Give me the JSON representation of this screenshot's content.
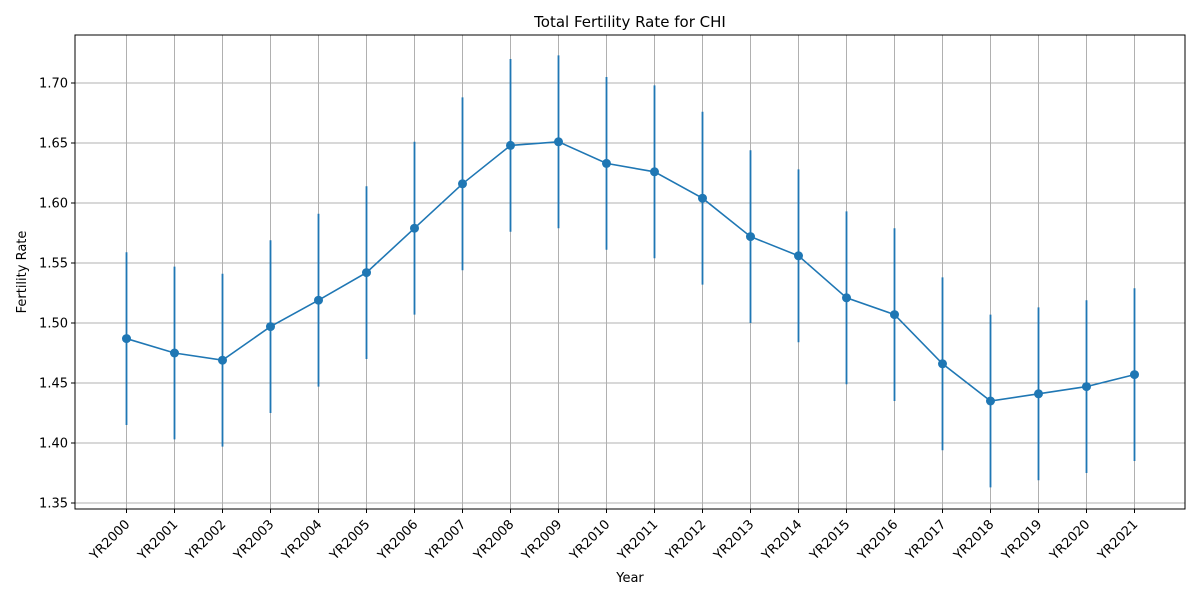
{
  "chart_data": {
    "type": "line",
    "title": "Total Fertility Rate for CHI",
    "xlabel": "Year",
    "ylabel": "Fertility Rate",
    "categories": [
      "YR2000",
      "YR2001",
      "YR2002",
      "YR2003",
      "YR2004",
      "YR2005",
      "YR2006",
      "YR2007",
      "YR2008",
      "YR2009",
      "YR2010",
      "YR2011",
      "YR2012",
      "YR2013",
      "YR2014",
      "YR2015",
      "YR2016",
      "YR2017",
      "YR2018",
      "YR2019",
      "YR2020",
      "YR2021"
    ],
    "series": [
      {
        "values": [
          1.487,
          1.475,
          1.469,
          1.497,
          1.519,
          1.542,
          1.579,
          1.616,
          1.648,
          1.651,
          1.633,
          1.626,
          1.604,
          1.572,
          1.556,
          1.521,
          1.507,
          1.466,
          1.435,
          1.441,
          1.447,
          1.457
        ],
        "error": [
          0.072,
          0.072,
          0.072,
          0.072,
          0.072,
          0.072,
          0.072,
          0.072,
          0.072,
          0.072,
          0.072,
          0.072,
          0.072,
          0.072,
          0.072,
          0.072,
          0.072,
          0.072,
          0.072,
          0.072,
          0.072,
          0.072
        ],
        "color": "#1f77b4",
        "marker": "circle"
      }
    ],
    "ylim": [
      1.345,
      1.74
    ],
    "yticks": [
      "1.35",
      "1.40",
      "1.45",
      "1.50",
      "1.55",
      "1.60",
      "1.65",
      "1.70"
    ],
    "grid": true
  }
}
